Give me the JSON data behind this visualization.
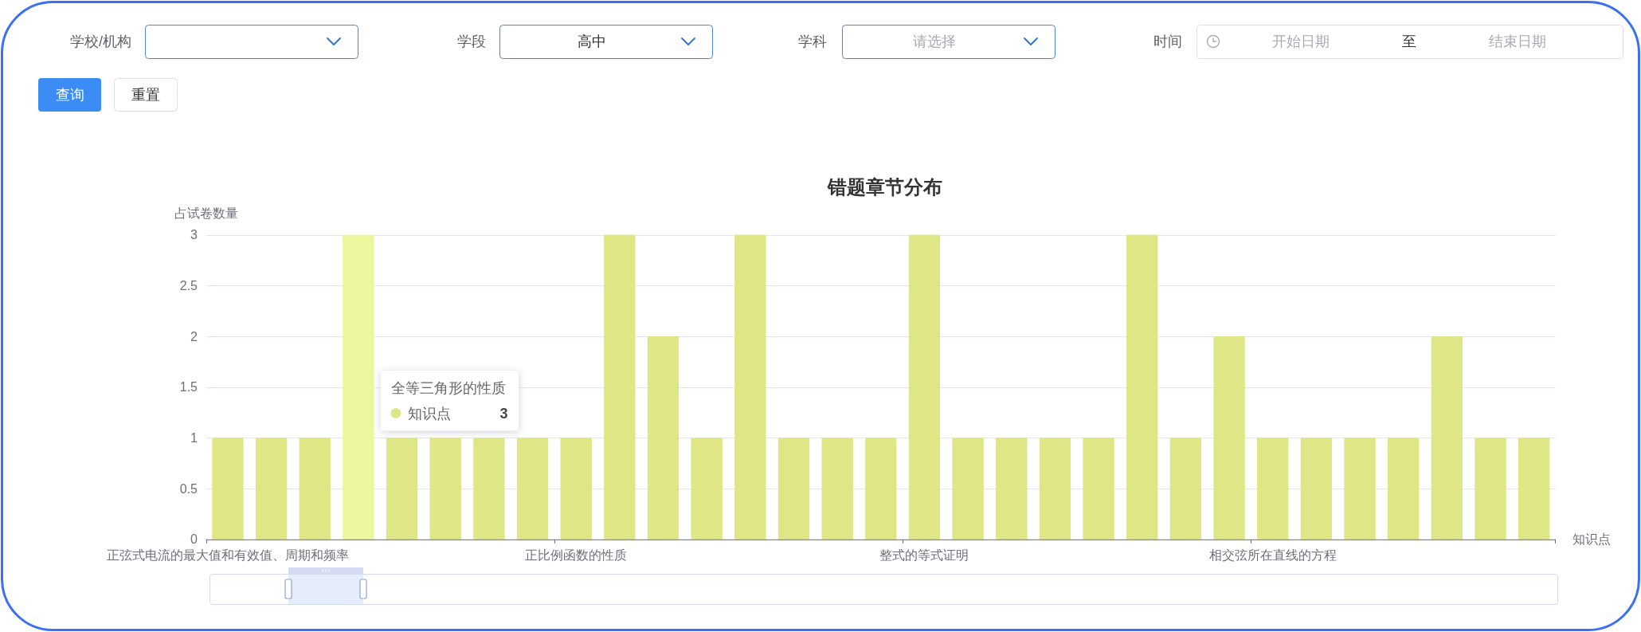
{
  "chart_data": [
    {
      "type": "other",
      "annotations": [
        "学校/机构",
        "学段",
        "高中",
        "学科",
        "请选择",
        "时间",
        "开始日期",
        "至",
        "结束日期",
        "查询",
        "重置"
      ]
    },
    {
      "type": "bar",
      "title": "错题章节分布",
      "xlabel": "知识点",
      "ylabel": "占试卷数量",
      "categories": [
        "正弦式电流的最大值和有效值、周期和频率",
        null,
        null,
        null,
        null,
        null,
        null,
        null,
        "正比例函数的性质",
        null,
        null,
        null,
        null,
        null,
        null,
        null,
        "整式的等式证明",
        null,
        null,
        null,
        null,
        null,
        null,
        null,
        "相交弦所在直线的方程",
        null,
        null,
        null,
        null,
        null,
        null
      ],
      "series": [
        {
          "name": "知识点",
          "color": "#dee685",
          "colors": [
            "#dee685",
            "#dee685",
            "#dee685",
            "#ecf69c",
            "#dee685",
            "#dee685",
            "#dee685",
            "#dee685",
            "#dee685",
            "#dee685",
            "#dee685",
            "#dee685",
            "#dee685",
            "#dee685",
            "#dee685",
            "#dee685",
            "#dee685",
            "#dee685",
            "#dee685",
            "#dee685",
            "#dee685",
            "#dee685",
            "#dee685",
            "#dee685",
            "#dee685",
            "#dee685",
            "#dee685",
            "#dee685",
            "#dee685",
            "#dee685",
            "#dee685"
          ],
          "values": [
            1,
            1,
            1,
            3,
            1,
            1,
            1,
            1,
            1,
            3,
            2,
            1,
            3,
            1,
            1,
            1,
            3,
            1,
            1,
            1,
            1,
            3,
            1,
            2,
            1,
            1,
            1,
            1,
            2,
            1,
            1
          ]
        }
      ],
      "ylim": [
        0,
        3
      ],
      "yticks": [
        0,
        0.5,
        1,
        1.5,
        2,
        2.5,
        3
      ],
      "grid": "y",
      "annotations": [
        "全等三角形的性质",
        "3"
      ]
    }
  ]
}
